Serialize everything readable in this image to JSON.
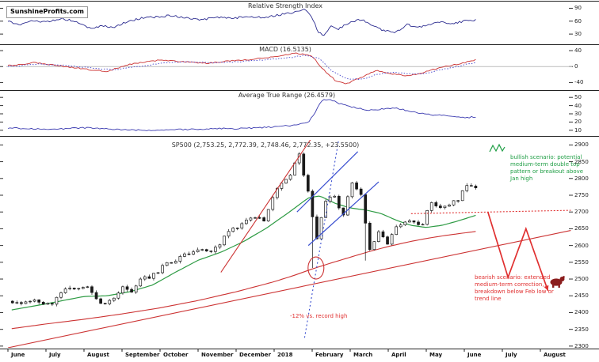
{
  "logo": {
    "brand_red": "Sunshine",
    "brand_black": "Profits.com"
  },
  "annotations": {
    "bullish": {
      "text": "bullish scenario: potential medium-term double top pattern or breakout above Jan high",
      "color": "#1f9e45"
    },
    "bearish": {
      "text": "bearish scenario: extended medium-term correction, breakdown below Feb low or trend line",
      "color": "#e03030"
    },
    "drawdown": {
      "text": "-12% vs. record high",
      "color": "#e03030"
    }
  },
  "icons": {
    "bear": "bear-icon",
    "double_top": "double-top-pattern-icon"
  },
  "x_axis_note": "months from June 2017 to August 2018; price data ends early June 2018",
  "chart_data": [
    {
      "type": "line",
      "title": "Relative Strength Index",
      "color": "#2a2a8f",
      "ylim": [
        10,
        100
      ],
      "y_ticks": [
        90,
        60,
        30
      ],
      "x_unit": "months_since_2017-06",
      "points": [
        [
          0,
          60
        ],
        [
          0.3,
          52
        ],
        [
          0.6,
          62
        ],
        [
          1,
          58
        ],
        [
          1.4,
          66
        ],
        [
          1.8,
          60
        ],
        [
          2.2,
          42
        ],
        [
          2.5,
          50
        ],
        [
          2.8,
          45
        ],
        [
          3.1,
          58
        ],
        [
          3.5,
          67
        ],
        [
          3.9,
          70
        ],
        [
          4.3,
          73
        ],
        [
          4.7,
          68
        ],
        [
          5.1,
          63
        ],
        [
          5.5,
          70
        ],
        [
          5.9,
          66
        ],
        [
          6.3,
          72
        ],
        [
          6.7,
          68
        ],
        [
          7.1,
          74
        ],
        [
          7.5,
          80
        ],
        [
          7.8,
          87
        ],
        [
          8.0,
          70
        ],
        [
          8.15,
          34
        ],
        [
          8.3,
          28
        ],
        [
          8.5,
          48
        ],
        [
          8.7,
          42
        ],
        [
          9,
          58
        ],
        [
          9.3,
          64
        ],
        [
          9.6,
          48
        ],
        [
          9.9,
          38
        ],
        [
          10.2,
          34
        ],
        [
          10.5,
          52
        ],
        [
          10.8,
          46
        ],
        [
          11.1,
          52
        ],
        [
          11.4,
          58
        ],
        [
          11.7,
          54
        ],
        [
          12,
          60
        ],
        [
          12.3,
          63
        ]
      ]
    },
    {
      "type": "line",
      "title": "MACD (16.5135)",
      "current_value": 16.5135,
      "ylim": [
        -55,
        50
      ],
      "y_ticks": [
        40,
        0,
        -40
      ],
      "x_unit": "months_since_2017-06",
      "series": [
        {
          "name": "macd",
          "style": "solid",
          "color": "#cc3333",
          "points": [
            [
              0,
              2
            ],
            [
              0.7,
              10
            ],
            [
              1.2,
              4
            ],
            [
              2,
              -6
            ],
            [
              2.6,
              -12
            ],
            [
              3.2,
              6
            ],
            [
              4,
              16
            ],
            [
              4.6,
              12
            ],
            [
              5.2,
              8
            ],
            [
              5.8,
              14
            ],
            [
              6.4,
              18
            ],
            [
              7,
              24
            ],
            [
              7.6,
              34
            ],
            [
              8,
              26
            ],
            [
              8.3,
              -8
            ],
            [
              8.6,
              -34
            ],
            [
              8.9,
              -44
            ],
            [
              9.3,
              -26
            ],
            [
              9.7,
              -10
            ],
            [
              10.1,
              -18
            ],
            [
              10.5,
              -24
            ],
            [
              10.9,
              -16
            ],
            [
              11.3,
              -4
            ],
            [
              11.7,
              4
            ],
            [
              12.1,
              12
            ],
            [
              12.3,
              16.5
            ]
          ]
        },
        {
          "name": "signal",
          "style": "dotted",
          "color": "#4444cc",
          "points": [
            [
              0,
              0
            ],
            [
              0.8,
              6
            ],
            [
              1.4,
              4
            ],
            [
              2.2,
              -4
            ],
            [
              2.8,
              -8
            ],
            [
              3.4,
              0
            ],
            [
              4.2,
              10
            ],
            [
              4.8,
              12
            ],
            [
              5.4,
              9
            ],
            [
              6,
              12
            ],
            [
              6.6,
              16
            ],
            [
              7.2,
              20
            ],
            [
              7.8,
              28
            ],
            [
              8.2,
              20
            ],
            [
              8.5,
              -10
            ],
            [
              8.9,
              -30
            ],
            [
              9.3,
              -32
            ],
            [
              9.7,
              -20
            ],
            [
              10.1,
              -14
            ],
            [
              10.5,
              -18
            ],
            [
              10.9,
              -18
            ],
            [
              11.3,
              -10
            ],
            [
              11.7,
              -2
            ],
            [
              12.1,
              6
            ],
            [
              12.3,
              10
            ]
          ]
        }
      ]
    },
    {
      "type": "line",
      "title": "Average True Range (26.4579)",
      "current_value": 26.4579,
      "color": "#3a3ab0",
      "ylim": [
        5,
        55
      ],
      "y_ticks": [
        50,
        40,
        30,
        20,
        10
      ],
      "x_unit": "months_since_2017-06",
      "points": [
        [
          0,
          13
        ],
        [
          0.5,
          12
        ],
        [
          1,
          11
        ],
        [
          1.5,
          12
        ],
        [
          2,
          13
        ],
        [
          2.5,
          12
        ],
        [
          3,
          11
        ],
        [
          3.5,
          10
        ],
        [
          4,
          10
        ],
        [
          4.5,
          11
        ],
        [
          5,
          11
        ],
        [
          5.5,
          12
        ],
        [
          6,
          12
        ],
        [
          6.5,
          13
        ],
        [
          7,
          14
        ],
        [
          7.5,
          16
        ],
        [
          7.9,
          19
        ],
        [
          8.1,
          34
        ],
        [
          8.25,
          46
        ],
        [
          8.45,
          48
        ],
        [
          8.7,
          43
        ],
        [
          9,
          39
        ],
        [
          9.3,
          36
        ],
        [
          9.6,
          34
        ],
        [
          9.9,
          36
        ],
        [
          10.2,
          37
        ],
        [
          10.5,
          34
        ],
        [
          10.8,
          31
        ],
        [
          11.1,
          29
        ],
        [
          11.4,
          28
        ],
        [
          11.7,
          27
        ],
        [
          12,
          25
        ],
        [
          12.3,
          26.5
        ]
      ]
    },
    {
      "type": "candlestick",
      "title": "SP500 (2,753.25, 2,772.39, 2,748.46, 2,772.35, +23.5500)",
      "ohlc_quote": {
        "open": 2753.25,
        "high": 2772.39,
        "low": 2748.46,
        "close": 2772.35,
        "change": "+23.5500"
      },
      "ylim": [
        2295,
        2915
      ],
      "y_ticks": [
        2900,
        2850,
        2800,
        2750,
        2700,
        2650,
        2600,
        2550,
        2500,
        2450,
        2400,
        2350,
        2300
      ],
      "x_categories": [
        "June",
        "July",
        "August",
        "September",
        "October",
        "November",
        "December",
        "2018",
        "February",
        "March",
        "April",
        "May",
        "June",
        "July",
        "August"
      ],
      "weekly_closes": [
        2430,
        2432,
        2438,
        2425,
        2425,
        2459,
        2473,
        2472,
        2477,
        2441,
        2426,
        2443,
        2477,
        2461,
        2500,
        2502,
        2519,
        2549,
        2553,
        2575,
        2581,
        2588,
        2582,
        2602,
        2642,
        2652,
        2676,
        2683,
        2673,
        2743,
        2786,
        2810,
        2873,
        2762,
        2620,
        2732,
        2747,
        2691,
        2787,
        2752,
        2588,
        2641,
        2604,
        2656,
        2670,
        2670,
        2663,
        2728,
        2713,
        2721,
        2734,
        2779,
        2772
      ],
      "week_low_overrides": {
        "34": 2533,
        "40": 2555
      },
      "colors": {
        "candle": "#1a1a1a",
        "ma_fast": "#2e9b44",
        "ma_slow": "#cc3333",
        "trend": "#cc3333",
        "blue": "#3a4fd0",
        "bearish": "#e03030",
        "bear_icon": "#8b1d1d"
      },
      "overlays": {
        "green_ma": [
          [
            0.1,
            2408
          ],
          [
            1,
            2426
          ],
          [
            2,
            2448
          ],
          [
            2.6,
            2450
          ],
          [
            3.2,
            2462
          ],
          [
            3.8,
            2482
          ],
          [
            4.4,
            2520
          ],
          [
            5,
            2556
          ],
          [
            5.6,
            2580
          ],
          [
            6.2,
            2612
          ],
          [
            6.8,
            2652
          ],
          [
            7.4,
            2700
          ],
          [
            7.9,
            2742
          ],
          [
            8.2,
            2748
          ],
          [
            8.6,
            2726
          ],
          [
            9,
            2712
          ],
          [
            9.4,
            2706
          ],
          [
            9.8,
            2696
          ],
          [
            10.2,
            2676
          ],
          [
            10.6,
            2660
          ],
          [
            11,
            2654
          ],
          [
            11.4,
            2660
          ],
          [
            11.8,
            2672
          ],
          [
            12.3,
            2690
          ]
        ],
        "red_ma": [
          [
            0.1,
            2352
          ],
          [
            1,
            2366
          ],
          [
            2,
            2380
          ],
          [
            3,
            2396
          ],
          [
            4,
            2414
          ],
          [
            5,
            2436
          ],
          [
            6,
            2462
          ],
          [
            7,
            2492
          ],
          [
            7.5,
            2510
          ],
          [
            8,
            2530
          ],
          [
            8.5,
            2548
          ],
          [
            9,
            2565
          ],
          [
            9.5,
            2582
          ],
          [
            10,
            2597
          ],
          [
            10.5,
            2610
          ],
          [
            11,
            2621
          ],
          [
            11.5,
            2630
          ],
          [
            12.3,
            2642
          ]
        ],
        "trendline": [
          [
            0,
            2295
          ],
          [
            14.8,
            2645
          ]
        ],
        "steep_red_line": [
          [
            5.6,
            2520
          ],
          [
            8.1,
            2940
          ]
        ],
        "blue_channel": [
          [
            [
              7.6,
              2700
            ],
            [
              9.2,
              2880
            ]
          ],
          [
            [
              7.9,
              2600
            ],
            [
              9.75,
              2790
            ]
          ]
        ],
        "blue_dotted_support": [
          [
            7.8,
            2325
          ],
          [
            8.75,
            2950
          ]
        ],
        "red_dotted_resistance": [
          [
            10.6,
            2695
          ],
          [
            14.8,
            2705
          ]
        ],
        "bearish_zigzag": [
          [
            12.62,
            2700
          ],
          [
            13.15,
            2505
          ],
          [
            13.62,
            2650
          ],
          [
            14.2,
            2465
          ]
        ],
        "breakdown_circle": {
          "x": 8.1,
          "y": 2533
        }
      }
    }
  ]
}
